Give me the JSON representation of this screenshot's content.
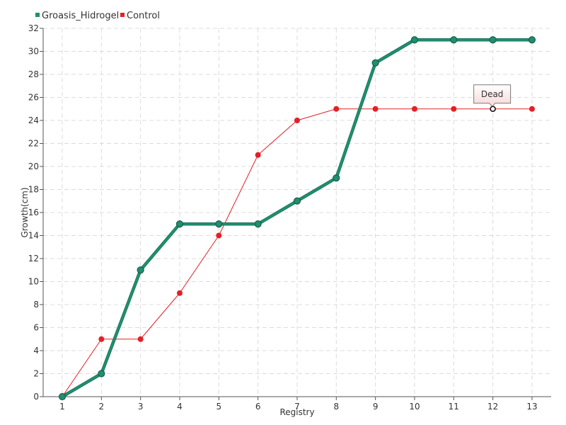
{
  "chart_data": {
    "type": "line",
    "xlabel": "Registry",
    "ylabel": "Growth(cm)",
    "categories": [
      "1",
      "2",
      "3",
      "4",
      "5",
      "6",
      "7",
      "8",
      "9",
      "10",
      "11",
      "12",
      "13"
    ],
    "ylim": [
      0,
      32
    ],
    "yticks": [
      0,
      2,
      4,
      6,
      8,
      10,
      12,
      14,
      16,
      18,
      20,
      22,
      24,
      26,
      28,
      30,
      32
    ],
    "grid": true,
    "legend_position": "top-left",
    "series": [
      {
        "name": "Groasis_Hidrogel",
        "color": "#1f8f6f",
        "values": [
          0,
          2,
          11,
          15,
          15,
          15,
          17,
          19,
          29,
          31,
          31,
          31,
          31
        ]
      },
      {
        "name": "Control",
        "color": "#e32028",
        "values": [
          0,
          5,
          5,
          9,
          14,
          21,
          24,
          25,
          25,
          25,
          25,
          25,
          25
        ]
      }
    ],
    "annotations": [
      {
        "series": "Control",
        "x": "12",
        "y": 25,
        "text": "Dead"
      }
    ]
  }
}
